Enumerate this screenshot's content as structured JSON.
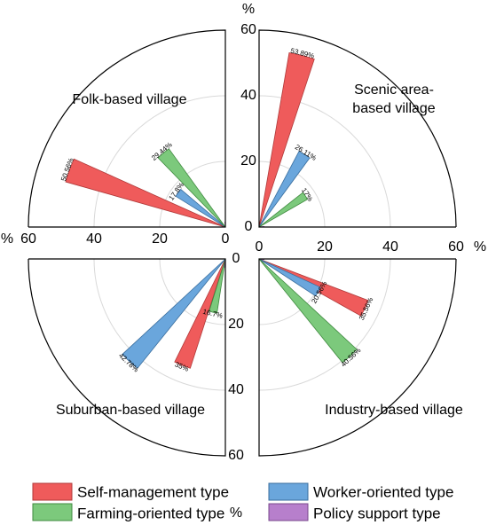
{
  "chart_data": {
    "type": "bar",
    "polar": true,
    "axis_max": 60,
    "ticks": [
      0,
      20,
      40,
      60
    ],
    "unit_label": "%",
    "categories": [
      "Self-management type",
      "Worker-oriented type",
      "Farming-oriented type",
      "Policy support type"
    ],
    "colors": {
      "Self-management type": {
        "fill": "#ef5b5b",
        "stroke": "#b03a3a"
      },
      "Worker-oriented type": {
        "fill": "#6aa6dc",
        "stroke": "#3a6e9e"
      },
      "Farming-oriented type": {
        "fill": "#7cc97c",
        "stroke": "#3f8a3f"
      },
      "Policy support type": {
        "fill": "#b77fcc",
        "stroke": "#7a4a8c"
      }
    },
    "quadrants": [
      {
        "id": "folk",
        "title_lines": [
          "Folk-based village"
        ],
        "values": [
          {
            "category": "Self-management type",
            "value": 50.56,
            "label": "50.56%"
          },
          {
            "category": "Worker-oriented type",
            "value": 17.8,
            "label": "17.8%"
          },
          {
            "category": "Farming-oriented type",
            "value": 29.44,
            "label": "29.44%"
          },
          {
            "category": "Policy support type",
            "value": 1.5,
            "label": ""
          }
        ]
      },
      {
        "id": "scenic",
        "title_lines": [
          "Scenic area-",
          "based village"
        ],
        "values": [
          {
            "category": "Self-management type",
            "value": 53.89,
            "label": "53.89%"
          },
          {
            "category": "Worker-oriented type",
            "value": 26.11,
            "label": "26.11%"
          },
          {
            "category": "Farming-oriented type",
            "value": 17,
            "label": "17%"
          },
          {
            "category": "Policy support type",
            "value": 1.5,
            "label": ""
          }
        ]
      },
      {
        "id": "suburban",
        "title_lines": [
          "Suburban-based village"
        ],
        "values": [
          {
            "category": "Self-management type",
            "value": 35,
            "label": "35%"
          },
          {
            "category": "Worker-oriented type",
            "value": 42.78,
            "label": "42.78%"
          },
          {
            "category": "Farming-oriented type",
            "value": 16.7,
            "label": "16.7%"
          },
          {
            "category": "Policy support type",
            "value": 2.5,
            "label": ""
          }
        ]
      },
      {
        "id": "industry",
        "title_lines": [
          "Industry-based village"
        ],
        "values": [
          {
            "category": "Self-management type",
            "value": 35.56,
            "label": "35.56%"
          },
          {
            "category": "Worker-oriented type",
            "value": 20.56,
            "label": "20.56%"
          },
          {
            "category": "Farming-oriented type",
            "value": 40.56,
            "label": "40.56%"
          },
          {
            "category": "Policy support type",
            "value": 1.5,
            "label": ""
          }
        ]
      }
    ],
    "legend": [
      "Self-management type",
      "Worker-oriented type",
      "Farming-oriented type",
      "Policy support type"
    ],
    "grid": true,
    "legend_position": "bottom"
  }
}
